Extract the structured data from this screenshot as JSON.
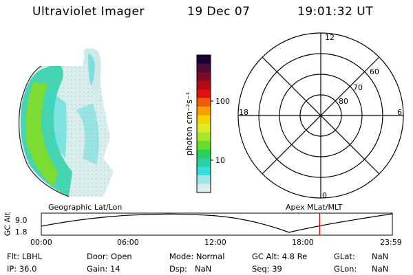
{
  "header": {
    "instrument": "Ultraviolet Imager",
    "date": "19 Dec 07",
    "time": "19:01:32 UT"
  },
  "colorbar": {
    "unit_label": "photon cm⁻²s⁻¹",
    "ticks": [
      "100",
      "10"
    ],
    "colors": [
      "#1a0033",
      "#4a0a3c",
      "#7d0a28",
      "#b30a14",
      "#e01010",
      "#f05a0a",
      "#f5a000",
      "#f2d200",
      "#dcec28",
      "#a8e628",
      "#68dc28",
      "#28d25a",
      "#28d2a0",
      "#38dcdc",
      "#9ee6e6",
      "#d8eeee"
    ]
  },
  "polar_plot": {
    "mlt_labels": {
      "top": "12",
      "left": "18",
      "right": "6",
      "bottom": "0"
    },
    "lat_labels": [
      "60",
      "70",
      "80"
    ]
  },
  "altitude_plot": {
    "ylabel": "GC Alt",
    "yticks": [
      "9.0",
      "1.8"
    ],
    "left_caption": "Geographic Lat/Lon",
    "right_caption": "Apex MLat/MLT",
    "xticks": [
      "00:00",
      "06:00",
      "12:00",
      "18:00",
      "23:59"
    ],
    "current_time_hours": 19.03,
    "marker_color": "#e00000"
  },
  "info": {
    "flt": "Flt: LBHL",
    "ip": "IP: 36.0",
    "door": "Door: Open",
    "gain": "Gain: 14",
    "mode": "Mode: Normal",
    "dsp": "Dsp:   NaN",
    "gc_alt": "GC Alt: 4.8 Re",
    "seq": "Seq: 39",
    "glat_label": "GLat:",
    "glat_value": "NaN",
    "glon_label": "GLon:",
    "glon_value": "NaN"
  }
}
